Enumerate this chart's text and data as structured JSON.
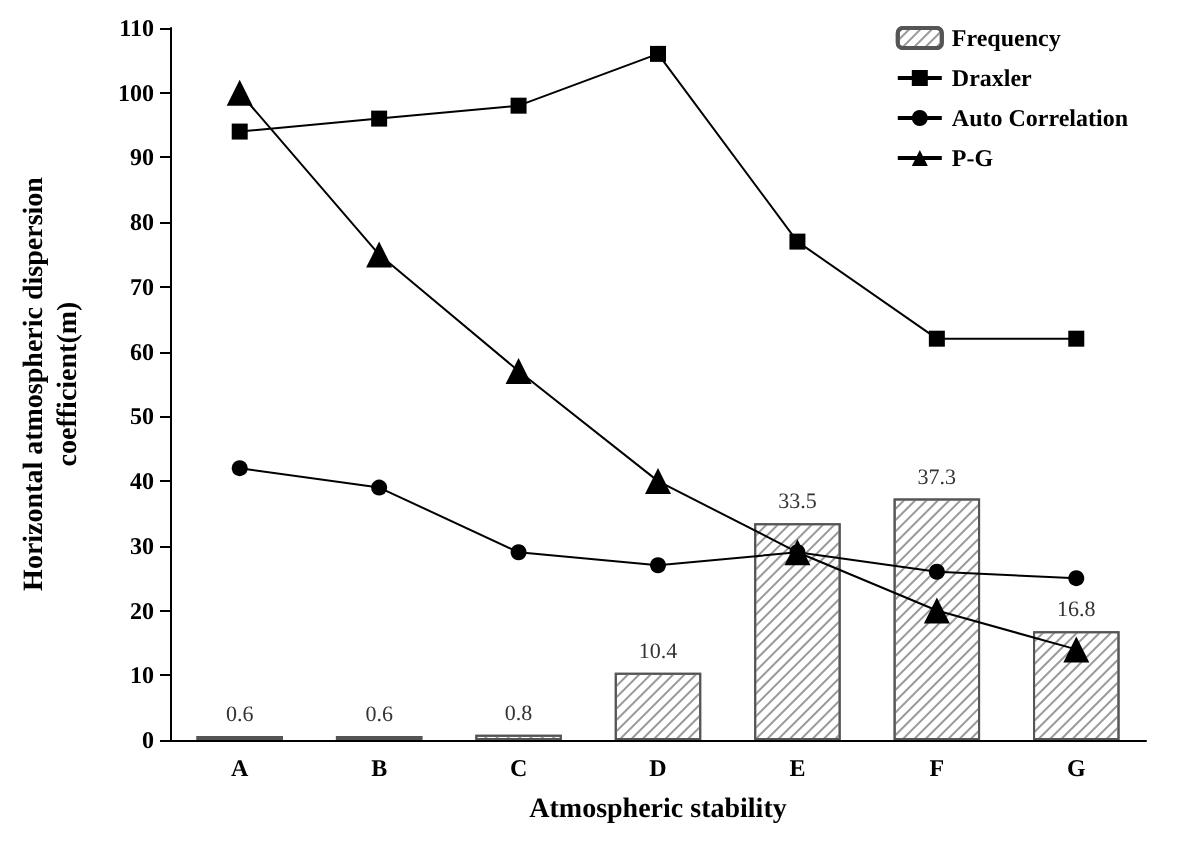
{
  "chart_data": {
    "type": "line",
    "xlabel": "Atmospheric stability",
    "ylabel": "Horizontal atmospheric dispersion\ncoefficient(m)",
    "categories": [
      "A",
      "B",
      "C",
      "D",
      "E",
      "F",
      "G"
    ],
    "series": [
      {
        "name": "Frequency",
        "type": "bar",
        "color": "#ffffff",
        "values": [
          0.6,
          0.6,
          0.8,
          10.4,
          33.5,
          37.3,
          16.8
        ],
        "data_labels": true
      },
      {
        "name": "Draxler",
        "color": "#000000",
        "marker": "square",
        "values": [
          94,
          96,
          98,
          106,
          77,
          62,
          62
        ]
      },
      {
        "name": "Auto Correlation",
        "color": "#000000",
        "marker": "circle",
        "values": [
          42,
          39,
          29,
          27,
          29,
          26,
          25
        ]
      },
      {
        "name": "P-G",
        "color": "#000000",
        "marker": "triangle",
        "values": [
          100,
          75,
          57,
          40,
          29,
          20,
          14
        ]
      }
    ],
    "ylim": [
      0,
      110
    ],
    "yticks": [
      0,
      10,
      20,
      30,
      40,
      50,
      60,
      70,
      80,
      90,
      100,
      110
    ],
    "grid": false,
    "legend": "top right"
  }
}
